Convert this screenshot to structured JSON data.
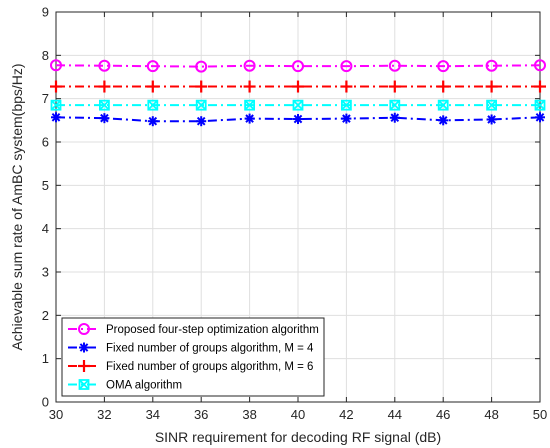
{
  "chart_data": {
    "type": "line",
    "xlabel": "SINR requirement for decoding RF signal (dB)",
    "ylabel": "Achievable sum rate of AmBC system(bps/Hz)",
    "xlim": [
      30,
      50
    ],
    "ylim": [
      0,
      9
    ],
    "x_ticks": [
      30,
      32,
      34,
      36,
      38,
      40,
      42,
      44,
      46,
      48,
      50
    ],
    "y_ticks": [
      0,
      1,
      2,
      3,
      4,
      5,
      6,
      7,
      8,
      9
    ],
    "grid": true,
    "legend_position": "bottom-left",
    "x": [
      30,
      32,
      34,
      36,
      38,
      40,
      42,
      44,
      46,
      48,
      50
    ],
    "series": [
      {
        "name": "Proposed four-step optimization algorithm",
        "color": "#FF00FF",
        "marker": "circle",
        "line_style": "dash-dot",
        "values": [
          7.77,
          7.76,
          7.75,
          7.74,
          7.76,
          7.75,
          7.75,
          7.76,
          7.75,
          7.76,
          7.77
        ]
      },
      {
        "name": "Fixed number of groups algorithm, M = 4",
        "color": "#0000FF",
        "marker": "asterisk",
        "line_style": "dash-dot",
        "values": [
          6.57,
          6.55,
          6.48,
          6.48,
          6.54,
          6.53,
          6.54,
          6.56,
          6.5,
          6.52,
          6.57
        ]
      },
      {
        "name": "Fixed number of groups algorithm, M = 6",
        "color": "#FF0000",
        "marker": "plus",
        "line_style": "dash-dot",
        "values": [
          7.28,
          7.28,
          7.28,
          7.28,
          7.28,
          7.28,
          7.28,
          7.28,
          7.28,
          7.28,
          7.28
        ]
      },
      {
        "name": "OMA algorithm",
        "color": "#00FFFF",
        "marker": "square-x",
        "line_style": "dash-dot",
        "values": [
          6.85,
          6.85,
          6.85,
          6.85,
          6.85,
          6.85,
          6.85,
          6.85,
          6.85,
          6.85,
          6.85
        ]
      }
    ]
  }
}
